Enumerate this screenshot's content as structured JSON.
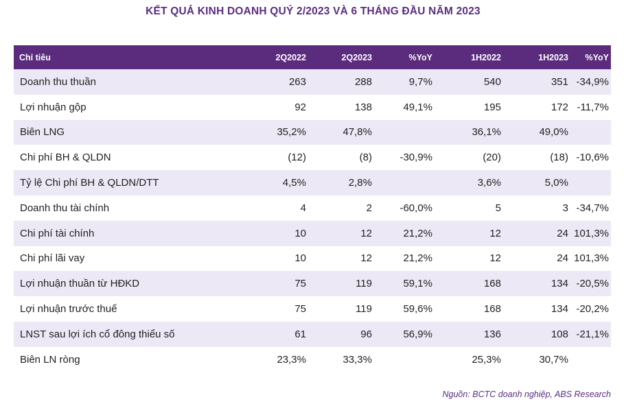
{
  "title": "KẾT QUẢ KINH DOANH QUÝ 2/2023 VÀ 6 THÁNG ĐẦU NĂM 2023",
  "header": [
    "Chỉ tiêu",
    "2Q2022",
    "2Q2023",
    "%YoY",
    "1H2022",
    "1H2023",
    "%YoY"
  ],
  "rows": [
    [
      "Doanh thu thuần",
      "263",
      "288",
      "9,7%",
      "540",
      "351",
      "-34,9%"
    ],
    [
      "Lợi nhuận gộp",
      "92",
      "138",
      "49,1%",
      "195",
      "172",
      "-11,7%"
    ],
    [
      "Biên LNG",
      "35,2%",
      "47,8%",
      "",
      "36,1%",
      "49,0%",
      ""
    ],
    [
      "Chi phí BH & QLDN",
      "(12)",
      "(8)",
      "-30,9%",
      "(20)",
      "(18)",
      "-10,6%"
    ],
    [
      "Tỷ lệ Chi phí BH & QLDN/DTT",
      "4,5%",
      "2,8%",
      "",
      "3,6%",
      "5,0%",
      ""
    ],
    [
      "Doanh thu tài chính",
      "4",
      "2",
      "-60,0%",
      "5",
      "3",
      "-34,7%"
    ],
    [
      "Chi phí tài chính",
      "10",
      "12",
      "21,2%",
      "12",
      "24",
      "101,3%"
    ],
    [
      "Chi phí lãi vay",
      "10",
      "12",
      "21,2%",
      "12",
      "24",
      "101,3%"
    ],
    [
      "Lợi nhuận thuần từ HĐKD",
      "75",
      "119",
      "59,1%",
      "168",
      "134",
      "-20,5%"
    ],
    [
      "Lợi nhuận trước thuế",
      "75",
      "119",
      "59,6%",
      "168",
      "134",
      "-20,2%"
    ],
    [
      "LNST sau lợi ích cổ đông thiểu số",
      "61",
      "96",
      "56,9%",
      "136",
      "108",
      "-21,1%"
    ],
    [
      "Biên LN ròng",
      "23,3%",
      "33,3%",
      "",
      "25,3%",
      "30,7%",
      ""
    ]
  ],
  "source": "Nguồn: BCTC doanh nghiệp, ABS Research",
  "colors": {
    "header_bg": "#5b2c7e",
    "row_shade": "#ece8f5",
    "title": "#5a2d82"
  }
}
